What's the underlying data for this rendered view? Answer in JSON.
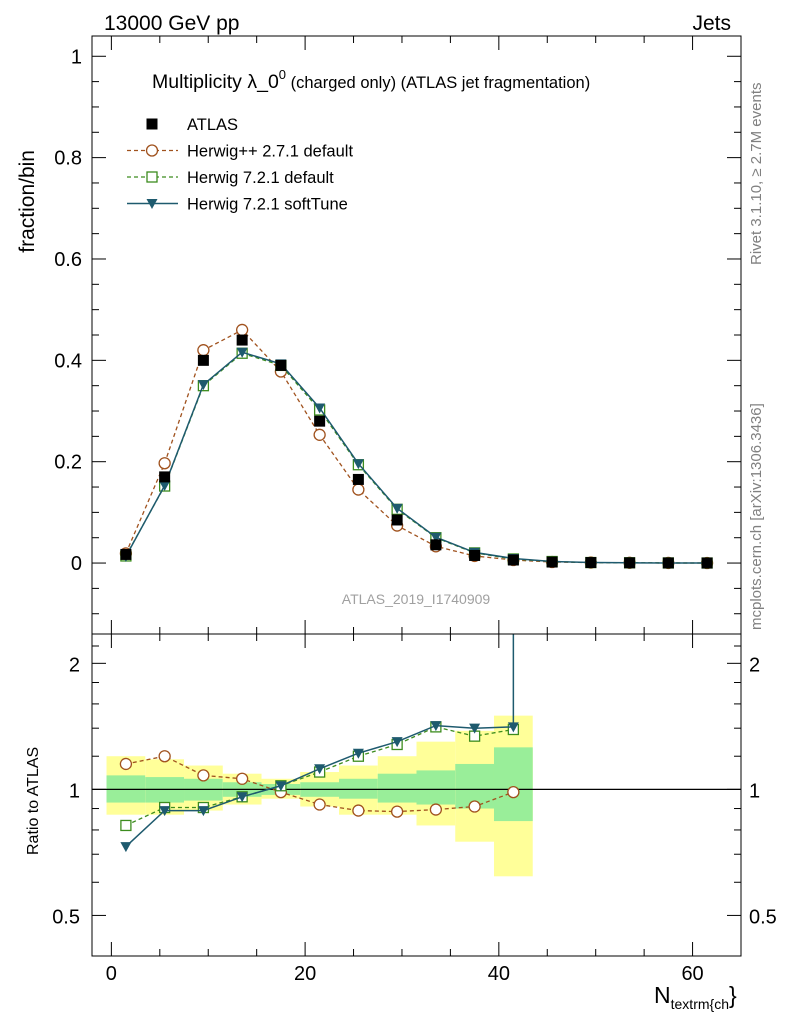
{
  "header": {
    "left": "13000 GeV pp",
    "right": "Jets"
  },
  "side_labels": {
    "rivet": "Rivet 3.1.10, ≥ 2.7M events",
    "mcplots": "mcplots.cern.ch [arXiv:1306.3436]"
  },
  "watermark": "ATLAS_2019_I1740909",
  "chart_data": [
    {
      "type": "line",
      "title_main": "Multiplicity λ_0",
      "title_sup": "0",
      "title_rest": " (charged only) (ATLAS jet fragmentation)",
      "ylabel": "fraction/bin",
      "xlim": [
        -2,
        65
      ],
      "ylim": [
        -0.14,
        1.04
      ],
      "yticks": [
        0,
        0.2,
        0.4,
        0.6,
        0.8,
        1
      ],
      "ytick_labels": [
        "0",
        "0.2",
        "0.4",
        "0.6",
        "0.8",
        "1"
      ],
      "x": [
        1.5,
        5.5,
        9.5,
        13.5,
        17.5,
        21.5,
        25.5,
        29.5,
        33.5,
        37.5,
        41.5,
        45.5,
        49.5,
        53.5,
        57.5,
        61.5
      ],
      "series": [
        {
          "name": "ATLAS",
          "style": "data",
          "color": "#000000",
          "values": [
            0.017,
            0.17,
            0.4,
            0.44,
            0.39,
            0.28,
            0.165,
            0.085,
            0.036,
            0.015,
            0.006,
            0.002,
            0.001,
            0.0005,
            0.0002,
            0.0001
          ]
        },
        {
          "name": "Herwig++ 2.7.1 default",
          "style": "circle",
          "color": "#a0521e",
          "values": [
            0.019,
            0.197,
            0.42,
            0.46,
            0.378,
            0.253,
            0.145,
            0.074,
            0.033,
            0.014,
            0.006,
            0.002,
            0.001,
            0.0005,
            0.0002,
            0.0001
          ]
        },
        {
          "name": "Herwig 7.2.1 default",
          "style": "square",
          "color": "#3c8c1e",
          "values": [
            0.014,
            0.152,
            0.35,
            0.414,
            0.39,
            0.302,
            0.194,
            0.106,
            0.05,
            0.02,
            0.008,
            0.003,
            0.001,
            0.0005,
            0.0002,
            0.0001
          ]
        },
        {
          "name": "Herwig 7.2.1 softTune",
          "style": "triangle",
          "color": "#1e5a6e",
          "values": [
            0.013,
            0.153,
            0.352,
            0.416,
            0.393,
            0.306,
            0.196,
            0.108,
            0.051,
            0.021,
            0.009,
            0.003,
            0.001,
            0.0005,
            0.0002,
            0.0001
          ]
        }
      ],
      "legend_position": "top-left"
    },
    {
      "type": "line",
      "ylabel": "Ratio to ATLAS",
      "xlabel_main": "N",
      "xlabel_sub": "textrm{ch",
      "xlabel_end": "}",
      "xlim": [
        -2,
        65
      ],
      "ylim": [
        0.4,
        2.35
      ],
      "log_y": true,
      "xticks": [
        0,
        20,
        40,
        60
      ],
      "xtick_labels": [
        "0",
        "20",
        "40",
        "60"
      ],
      "yticks": [
        0.5,
        1,
        2
      ],
      "ytick_labels": [
        "0.5",
        "1",
        "2"
      ],
      "bins": [
        [
          -0.5,
          3.5
        ],
        [
          3.5,
          7.5
        ],
        [
          7.5,
          11.5
        ],
        [
          11.5,
          15.5
        ],
        [
          15.5,
          19.5
        ],
        [
          19.5,
          23.5
        ],
        [
          23.5,
          27.5
        ],
        [
          27.5,
          31.5
        ],
        [
          31.5,
          35.5
        ],
        [
          35.5,
          39.5
        ],
        [
          39.5,
          43.5
        ]
      ],
      "band_inner": [
        [
          0.93,
          1.08
        ],
        [
          0.93,
          1.07
        ],
        [
          0.94,
          1.06
        ],
        [
          0.96,
          1.04
        ],
        [
          0.97,
          1.03
        ],
        [
          0.96,
          1.04
        ],
        [
          0.95,
          1.06
        ],
        [
          0.93,
          1.09
        ],
        [
          0.92,
          1.11
        ],
        [
          0.9,
          1.15
        ],
        [
          0.84,
          1.26
        ]
      ],
      "band_outer": [
        [
          0.87,
          1.2
        ],
        [
          0.87,
          1.18
        ],
        [
          0.89,
          1.14
        ],
        [
          0.92,
          1.09
        ],
        [
          0.95,
          1.06
        ],
        [
          0.91,
          1.1
        ],
        [
          0.87,
          1.14
        ],
        [
          0.87,
          1.2
        ],
        [
          0.82,
          1.3
        ],
        [
          0.75,
          1.38
        ],
        [
          0.62,
          1.5
        ]
      ],
      "x": [
        1.5,
        5.5,
        9.5,
        13.5,
        17.5,
        21.5,
        25.5,
        29.5,
        33.5,
        37.5,
        41.5
      ],
      "series": [
        {
          "name": "Herwig++ 2.7.1 default",
          "style": "circle",
          "color": "#a0521e",
          "values": [
            1.15,
            1.2,
            1.08,
            1.06,
            0.985,
            0.92,
            0.89,
            0.885,
            0.895,
            0.91,
            0.985
          ]
        },
        {
          "name": "Herwig 7.2.1 default",
          "style": "square",
          "color": "#3c8c1e",
          "values": [
            0.82,
            0.905,
            0.905,
            0.96,
            1.02,
            1.1,
            1.2,
            1.28,
            1.41,
            1.34,
            1.39
          ]
        },
        {
          "name": "Herwig 7.2.1 softTune",
          "style": "triangle",
          "color": "#1e5a6e",
          "values": [
            0.73,
            0.89,
            0.89,
            0.96,
            1.02,
            1.12,
            1.22,
            1.3,
            1.42,
            1.4,
            1.41
          ]
        }
      ]
    }
  ]
}
